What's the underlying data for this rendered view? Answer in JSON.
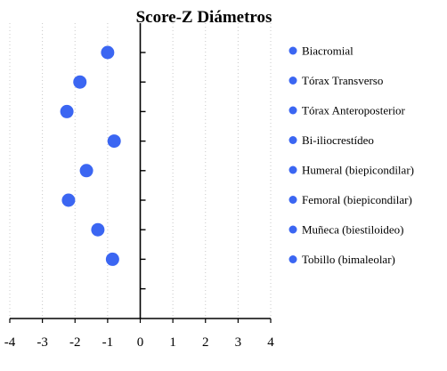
{
  "chart_data": {
    "type": "scatter",
    "title": "Score-Z Diámetros",
    "xlabel": "",
    "ylabel": "",
    "xlim": [
      -4,
      4
    ],
    "xticks": [
      -4,
      -3,
      -2,
      -1,
      0,
      1,
      2,
      3,
      4
    ],
    "grid": "vertical dotted",
    "legend_position": "right",
    "marker_color": "#3b66f2",
    "series": [
      {
        "name": "Biacromial",
        "x": -1.0
      },
      {
        "name": "Tórax Transverso",
        "x": -1.85
      },
      {
        "name": "Tórax Anteroposterior",
        "x": -2.25
      },
      {
        "name": "Bi-iliocrestídeo",
        "x": -0.8
      },
      {
        "name": "Humeral (biepicondilar)",
        "x": -1.65
      },
      {
        "name": "Femoral (biepicondilar)",
        "x": -2.2
      },
      {
        "name": "Muñeca (biestiloideo)",
        "x": -1.3
      },
      {
        "name": "Tobillo (bimaleolar)",
        "x": -0.85
      }
    ]
  }
}
